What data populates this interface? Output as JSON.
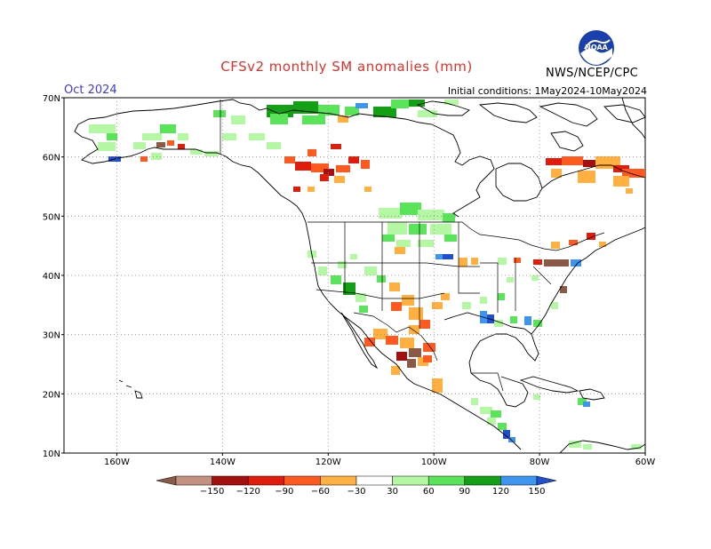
{
  "title": "CFSv2 monthly SM anomalies (mm)",
  "month_label": "Oct 2024",
  "initial_conditions": "Initial conditions: 1May2024-10May2024",
  "agency": "NWS/NCEP/CPC",
  "logo_text": "NOAA",
  "lat_ticks": [
    "70N",
    "60N",
    "50N",
    "40N",
    "30N",
    "20N",
    "10N"
  ],
  "lon_ticks": [
    "160W",
    "140W",
    "120W",
    "100W",
    "80W",
    "60W"
  ],
  "legend": {
    "labels": [
      "−150",
      "−120",
      "−90",
      "−60",
      "−30",
      "30",
      "60",
      "90",
      "120",
      "150"
    ],
    "colors": [
      "#8b5a46",
      "#c49080",
      "#a41010",
      "#e01c0c",
      "#fe5a20",
      "#ffb040",
      "#ffffff",
      "#b4f8a4",
      "#5ae45a",
      "#14a014",
      "#3c96f0",
      "#2050d0"
    ]
  },
  "colors": {
    "title": "#e0302a",
    "month": "#3b3bd6",
    "grid": "#8a8a8a",
    "land_border": "#000000"
  }
}
